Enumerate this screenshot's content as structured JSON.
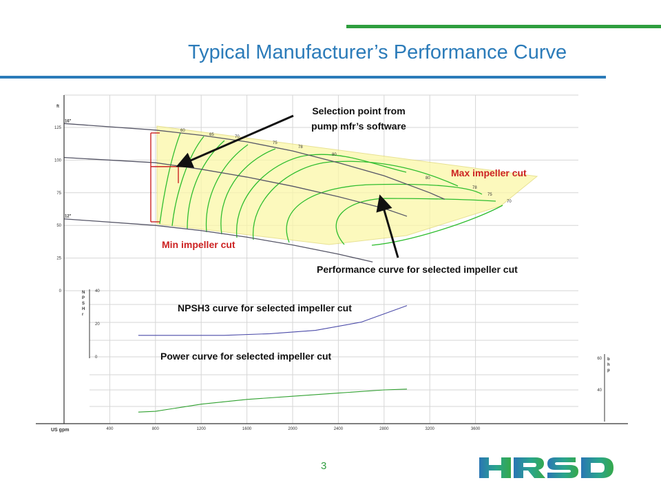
{
  "slide": {
    "title": "Typical Manufacturer’s Performance Curve",
    "page_number": "3",
    "logo_text": "HRSD",
    "colors": {
      "accent_blue": "#2b7bb9",
      "accent_green": "#2e9e3e",
      "callout_red": "#cc2222"
    }
  },
  "chart_data": {
    "type": "line",
    "x_label": "US gpm",
    "x_ticks": [
      400,
      800,
      1200,
      1600,
      2000,
      2400,
      2800,
      3200,
      3600
    ],
    "head_panel": {
      "y_unit": "ft",
      "y_ticks": [
        0,
        25,
        50,
        75,
        100,
        125
      ],
      "y_range": [
        0,
        135
      ],
      "impeller_labels": [
        "16\"",
        "12\""
      ],
      "series": [
        {
          "id": "max",
          "label": "16\"",
          "color": "#555566",
          "points": [
            [
              0,
              128
            ],
            [
              800,
              123
            ],
            [
              1200,
              119
            ],
            [
              1600,
              114
            ],
            [
              2000,
              107
            ],
            [
              2400,
              98
            ],
            [
              2800,
              88
            ],
            [
              3200,
              75
            ],
            [
              3330,
              70
            ]
          ]
        },
        {
          "id": "selected",
          "color": "#555566",
          "points": [
            [
              0,
              102
            ],
            [
              800,
              98
            ],
            [
              1200,
              93
            ],
            [
              1600,
              87
            ],
            [
              2000,
              80
            ],
            [
              2400,
              72
            ],
            [
              2800,
              63
            ],
            [
              3000,
              57
            ]
          ]
        },
        {
          "id": "min",
          "label": "12\"",
          "color": "#555566",
          "points": [
            [
              0,
              55
            ],
            [
              800,
              50
            ],
            [
              1200,
              46
            ],
            [
              1600,
              41
            ],
            [
              2000,
              35
            ],
            [
              2400,
              28
            ],
            [
              2700,
              22
            ]
          ]
        }
      ],
      "efficiency_labels": [
        "60",
        "65",
        "70",
        "75",
        "78",
        "80",
        "80",
        "78",
        "75",
        "70"
      ],
      "selection_point": {
        "x": 1000,
        "y": 95
      }
    },
    "npsh_panel": {
      "y_label": "NPSHr",
      "y_ticks": [
        0,
        20,
        40
      ],
      "y_range": [
        0,
        40
      ],
      "series": [
        {
          "id": "npsh3",
          "color": "#4a4aa8",
          "points": [
            [
              650,
              13
            ],
            [
              1000,
              13
            ],
            [
              1400,
              13
            ],
            [
              1800,
              14
            ],
            [
              2200,
              16
            ],
            [
              2600,
              21
            ],
            [
              3000,
              31
            ]
          ]
        }
      ]
    },
    "power_panel": {
      "y_label": "bhp",
      "y_ticks": [
        40,
        60
      ],
      "y_range": [
        26,
        62
      ],
      "series": [
        {
          "id": "power",
          "color": "#2ea02e",
          "points": [
            [
              650,
              26
            ],
            [
              800,
              26.5
            ],
            [
              1200,
              31
            ],
            [
              1600,
              34
            ],
            [
              2000,
              36
            ],
            [
              2400,
              38
            ],
            [
              2800,
              40
            ],
            [
              3000,
              40.5
            ]
          ]
        }
      ]
    },
    "annotations": {
      "selection": "Selection point from\npump mfr’s software",
      "max_cut": "Max impeller cut",
      "min_cut": "Min impeller cut",
      "performance": "Performance curve for selected impeller cut",
      "npsh": "NPSH3 curve for selected impeller cut",
      "power": "Power curve for selected impeller cut"
    }
  }
}
